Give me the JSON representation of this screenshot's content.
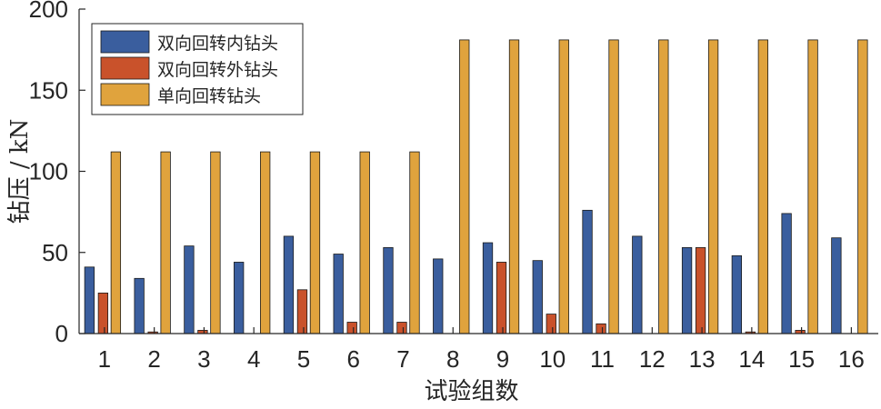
{
  "chart_data": {
    "type": "bar",
    "xlabel": "试验组数",
    "ylabel": "钻压 / kN",
    "ylim": [
      0,
      200
    ],
    "yticks": [
      0,
      50,
      100,
      150,
      200
    ],
    "categories": [
      "1",
      "2",
      "3",
      "4",
      "5",
      "6",
      "7",
      "8",
      "9",
      "10",
      "11",
      "12",
      "13",
      "14",
      "15",
      "16"
    ],
    "legend_position": "top-left",
    "series": [
      {
        "name": "双向回转内钻头",
        "color": "#3a5e9e",
        "values": [
          41,
          34,
          54,
          44,
          60,
          49,
          53,
          46,
          56,
          45,
          76,
          60,
          53,
          48,
          74,
          59
        ]
      },
      {
        "name": "双向回转外钻头",
        "color": "#c9522b",
        "values": [
          25,
          1,
          2,
          0,
          27,
          7,
          7,
          0,
          44,
          12,
          6,
          0,
          53,
          1,
          2,
          0
        ]
      },
      {
        "name": "单向回转钻头",
        "color": "#e0a33d",
        "values": [
          112,
          112,
          112,
          112,
          112,
          112,
          112,
          181,
          181,
          181,
          181,
          181,
          181,
          181,
          181,
          181
        ]
      }
    ]
  }
}
